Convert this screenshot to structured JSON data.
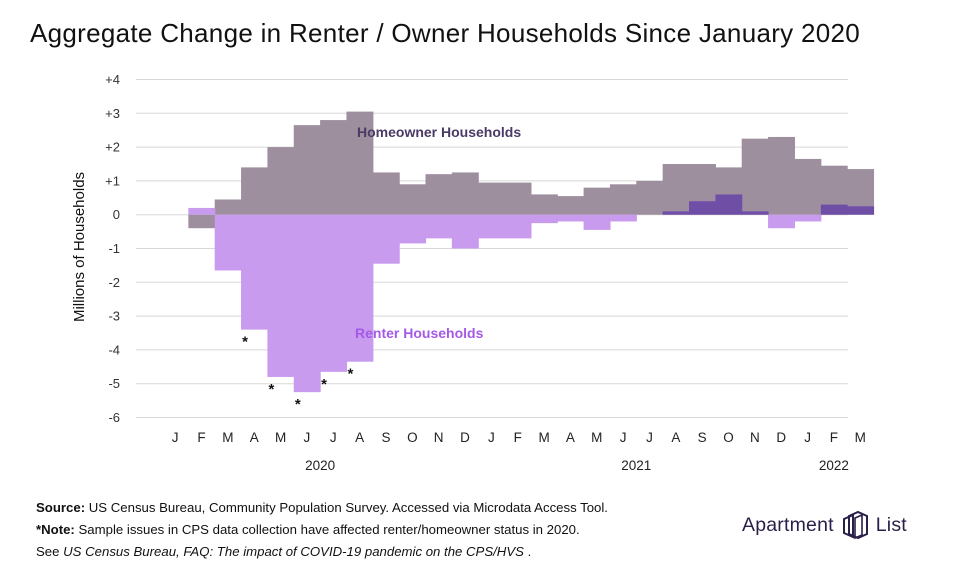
{
  "title": "Aggregate Change in Renter / Owner Households Since January 2020",
  "colors": {
    "homeowner": "#9e8f9e",
    "renter": "#c89bef",
    "overlap": "#6f4fa6",
    "homeowner_label": "#4b3a66",
    "renter_label": "#a45ae6",
    "grid": "#d8d8d8",
    "logo": "#2a1e4a"
  },
  "chart_data": {
    "type": "bar",
    "ylabel": "Millions of Households",
    "ylim": [
      -6,
      4
    ],
    "yticks": [
      "+4",
      "+3",
      "+2",
      "+1",
      "0",
      "-1",
      "-2",
      "-3",
      "-4",
      "-5",
      "-6"
    ],
    "ytick_values": [
      4,
      3,
      2,
      1,
      0,
      -1,
      -2,
      -3,
      -4,
      -5,
      -6
    ],
    "categories": [
      "J",
      "F",
      "M",
      "A",
      "M",
      "J",
      "J",
      "A",
      "S",
      "O",
      "N",
      "D",
      "J",
      "F",
      "M",
      "A",
      "M",
      "J",
      "J",
      "A",
      "S",
      "O",
      "N",
      "D",
      "J",
      "F",
      "M"
    ],
    "year_labels": [
      {
        "label": "2020",
        "index": 5.5
      },
      {
        "label": "2021",
        "index": 17.5
      },
      {
        "label": "2022",
        "index": 25
      }
    ],
    "series": [
      {
        "name": "Homeowner Households",
        "values": [
          0,
          -0.4,
          0.45,
          1.4,
          2.0,
          2.65,
          2.8,
          3.05,
          1.25,
          0.9,
          1.2,
          1.25,
          0.95,
          0.95,
          0.6,
          0.55,
          0.8,
          0.9,
          1.0,
          1.5,
          1.5,
          1.4,
          2.25,
          2.3,
          1.65,
          1.45,
          1.35
        ]
      },
      {
        "name": "Renter Households",
        "values": [
          0,
          0.2,
          -1.65,
          -3.4,
          -4.8,
          -5.25,
          -4.65,
          -4.35,
          -1.45,
          -0.85,
          -0.7,
          -1.0,
          -0.7,
          -0.7,
          -0.25,
          -0.2,
          -0.45,
          -0.2,
          0.0,
          0.1,
          0.4,
          0.6,
          0.1,
          -0.4,
          -0.2,
          0.3,
          0.25
        ]
      }
    ],
    "asterisks": [
      3,
      4,
      5,
      6,
      7
    ],
    "asterisk_symbol": "*",
    "annotations": {
      "homeowner": "Homeowner Households",
      "renter": "Renter Households"
    }
  },
  "notes": {
    "source_label": "Source:",
    "source_text": " US Census Bureau, Community Population Survey. Accessed via Microdata Access Tool.",
    "note_label": "*Note:",
    "note_text": " Sample issues in CPS data collection have affected renter/homeowner status in 2020.",
    "see_prefix": "See ",
    "see_italic": "US Census Bureau, FAQ: The impact of COVID-19 pandemic on the CPS/HVS",
    "see_suffix": " ."
  },
  "logo": {
    "left": "Apartment",
    "right": "List",
    "icon": "apartment-list-logo-icon"
  }
}
